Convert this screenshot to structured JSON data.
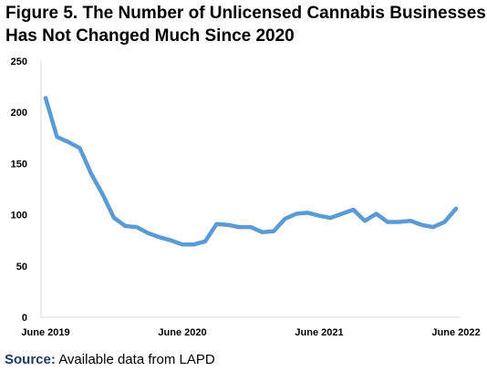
{
  "title_line1": "Figure 5. The Number of Unlicensed Cannabis Businesses",
  "title_line2": "Has Not Changed Much Since 2020",
  "source_label": "Source:",
  "source_text": " Available data from LAPD",
  "chart_data": {
    "type": "line",
    "title": "Figure 5. The Number of Unlicensed Cannabis Businesses Has Not Changed Much Since 2020",
    "xlabel": "",
    "ylabel": "",
    "ylim": [
      0,
      250
    ],
    "yticks": [
      0,
      50,
      100,
      150,
      200,
      250
    ],
    "xtick_labels": [
      {
        "index": 0,
        "label": "June 2019"
      },
      {
        "index": 12,
        "label": "June 2020"
      },
      {
        "index": 24,
        "label": "June 2021"
      },
      {
        "index": 36,
        "label": "June 2022"
      }
    ],
    "grid": false,
    "legend": "none",
    "line_color": "#5B9BD5",
    "series": [
      {
        "values": [
          214,
          176,
          171,
          165,
          140,
          120,
          97,
          89,
          88,
          82,
          78,
          75,
          71,
          71,
          74,
          91,
          90,
          88,
          88,
          83,
          84,
          96,
          101,
          102,
          99,
          97,
          101,
          105,
          94,
          101,
          93,
          93,
          94,
          90,
          88,
          93,
          106
        ]
      }
    ]
  }
}
